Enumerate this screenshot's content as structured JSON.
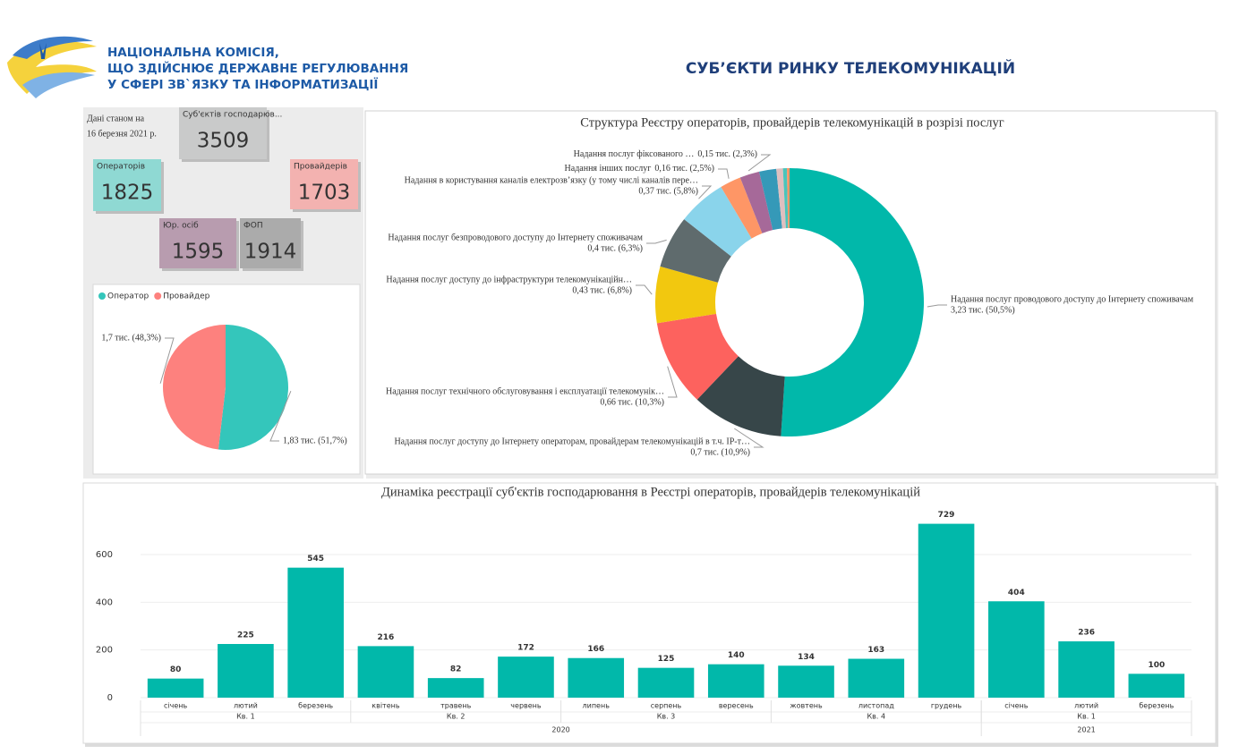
{
  "header": {
    "org": [
      "НАЦІОНАЛЬНА КОМІСІЯ,",
      "ЩО ЗДІЙСНЮЄ ДЕРЖАВНЕ РЕГУЛЮВАННЯ",
      "У СФЕРІ ЗВ`ЯЗКУ ТА ІНФОРМАТИЗАЦІЇ"
    ],
    "title": "СУБ’ЄКТИ РИНКУ ТЕЛЕКОМУНІКАЦІЙ"
  },
  "date_note": [
    "Дані станом на",
    "16 березня 2021 р."
  ],
  "cards": [
    {
      "label": "Суб'єктів господарюв...",
      "value": 3509
    },
    {
      "label": "Операторів",
      "value": 1825
    },
    {
      "label": "Провайдерів",
      "value": 1703
    },
    {
      "label": "Юр. осіб",
      "value": 1595
    },
    {
      "label": "ФОП",
      "value": 1914
    }
  ],
  "chart_data": [
    {
      "type": "pie",
      "categories": [
        "Оператор",
        "Провайдер"
      ],
      "values": [
        1.83,
        1.7
      ],
      "value_labels": [
        "1,83 тис. (51,7%)",
        "1,7 тис. (48,3%)"
      ],
      "colors": [
        "#34c6bb",
        "#fd817e"
      ],
      "legend": "top-left"
    },
    {
      "type": "donut",
      "title": "Структура Реєстру операторів, провайдерів телекомунікацій в розрізі послуг",
      "categories": [
        "Надання послуг проводового доступу до Інтернету споживачам",
        "Надання послуг доступу до Інтернету операторам, провайдерам телекомунікацій в т.ч. IP-т…",
        "Надання послуг технічного обслуговування і експлуатації телекомунік…",
        "Надання послуг доступу до інфраструктури телекомунікаційн…",
        "Надання послуг безпроводового доступу до Інтернету споживачам",
        "Надання в користування каналів електрозв’язку (у тому числі каналів пере…",
        "Надання інших послуг",
        "Надання послуг фіксованого …",
        null,
        null,
        null,
        null
      ],
      "values": [
        3.23,
        0.7,
        0.66,
        0.43,
        0.4,
        0.37,
        0.16,
        0.15,
        0.13,
        0.05,
        0.03,
        0.02
      ],
      "value_labels": [
        "3,23 тис. (50,5%)",
        "0,7 тис. (10,9%)",
        "0,66 тис. (10,3%)",
        "0,43 тис. (6,8%)",
        "0,4 тис. (6,3%)",
        "0,37 тис. (5,8%)",
        "0,16 тис. (2,5%)",
        "0,15 тис. (2,3%)",
        null,
        null,
        null,
        null
      ],
      "colors": [
        "#01b8aa",
        "#374649",
        "#fd625e",
        "#f2c80f",
        "#5f6b6d",
        "#8ad4eb",
        "#fe9666",
        "#a66999",
        "#3599b8",
        "#dfbfbf",
        "#4ac5bb",
        "#fe9666"
      ]
    },
    {
      "type": "bar",
      "title": "Динаміка реєстрації суб'єктів господарювання в Реєстрі операторів, провайдерів телекомунікацій",
      "categories": [
        "січень",
        "лютий",
        "березень",
        "квітень",
        "травень",
        "червень",
        "липень",
        "серпень",
        "вересень",
        "жовтень",
        "листопад",
        "грудень",
        "січень",
        "лютий",
        "березень"
      ],
      "quarters": [
        "Кв. 1",
        null,
        null,
        "Кв. 2",
        null,
        null,
        "Кв. 3",
        null,
        null,
        "Кв. 4",
        null,
        null,
        "Кв. 1",
        null,
        null
      ],
      "years": [
        "2020",
        null,
        null,
        null,
        null,
        null,
        null,
        null,
        null,
        null,
        null,
        null,
        "2021",
        null,
        null
      ],
      "values": [
        80,
        225,
        545,
        216,
        82,
        172,
        166,
        125,
        140,
        134,
        163,
        729,
        404,
        236,
        100
      ],
      "color": "#01b8aa",
      "ylim": [
        0,
        780
      ],
      "yticks": [
        0,
        200,
        400,
        600
      ],
      "grid": true,
      "data_labels": true
    }
  ]
}
